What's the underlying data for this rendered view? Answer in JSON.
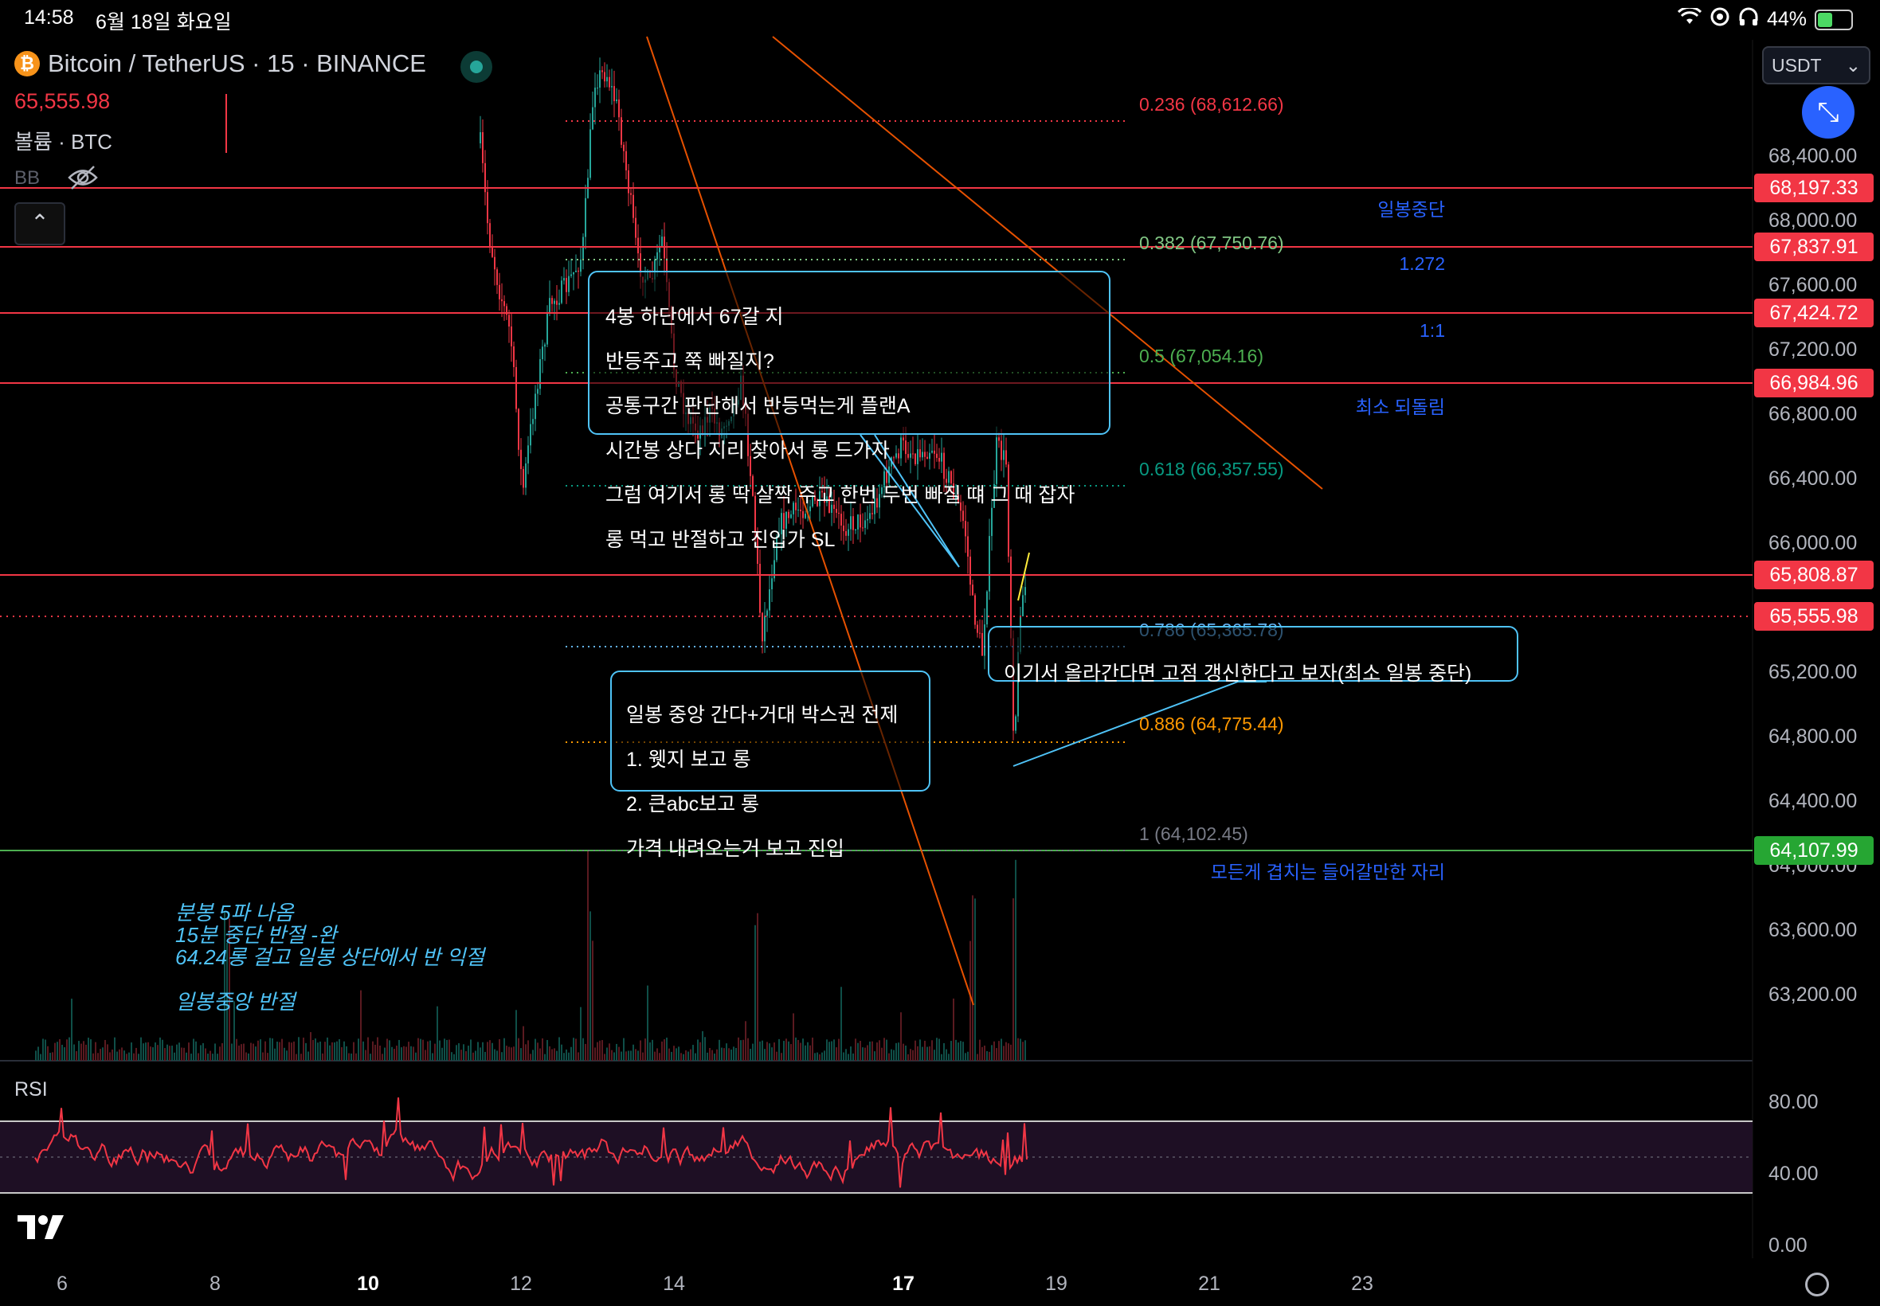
{
  "status_bar": {
    "time": "14:58",
    "date": "6월 18일 화요일",
    "battery": "44%",
    "battery_level": 0.44
  },
  "legend": {
    "symbol_title": "Bitcoin / TetherUS · 15 · BINANCE",
    "last_price": "65,555.98",
    "volume_label": "볼륨 · BTC",
    "bb_label": "BB",
    "collapse_glyph": "⌃"
  },
  "top_right": {
    "currency": "USDT",
    "currency_caret": "⌄",
    "fullscreen_glyph": "⤡"
  },
  "price_axis": {
    "labels": [
      "68,400.00",
      "68,000.00",
      "67,600.00",
      "67,200.00",
      "66,800.00",
      "66,400.00",
      "66,000.00",
      "65,200.00",
      "64,800.00",
      "64,400.00",
      "64,000.00",
      "63,600.00",
      "63,200.00"
    ],
    "tags": [
      {
        "text": "68,197.33",
        "color": "red"
      },
      {
        "text": "67,837.91",
        "color": "red"
      },
      {
        "text": "67,424.72",
        "color": "red"
      },
      {
        "text": "66,984.96",
        "color": "red"
      },
      {
        "text": "65,808.87",
        "color": "red"
      },
      {
        "text": "65,555.98",
        "color": "red"
      },
      {
        "text": "64,107.99",
        "color": "green"
      }
    ]
  },
  "line_labels": {
    "daily_mid": "일봉중단",
    "ext_1272": "1.272",
    "ratio_1_1": "1:1",
    "min_retrace": "최소 되돌림",
    "all_overlap": "모든게 겹치는 들어갈만한 자리"
  },
  "fib_levels": [
    {
      "text": "0.236 (68,612.66)",
      "color": "#f23645"
    },
    {
      "text": "0.382 (67,750.76)",
      "color": "#81c784"
    },
    {
      "text": "0.5 (67,054.16)",
      "color": "#4caf50"
    },
    {
      "text": "0.618 (66,357.55)",
      "color": "#089981"
    },
    {
      "text": "0.786 (65,365.78)",
      "color": "#64b5f6"
    },
    {
      "text": "0.886 (64,775.44)",
      "color": "#ff9800"
    },
    {
      "text": "1 (64,102.45)",
      "color": "#787b86"
    }
  ],
  "notes": {
    "plan_box": [
      "4봉 하단에서 67갈 지",
      "반등주고 쭉 빠질지?",
      "공통구간 판단해서 반등먹는게 플랜A",
      "시간봉 상다 지리 찾아서 롱 드가자",
      "그럼 여기서 롱 딱 살짝 주고 한번 두번 빠질 떄 그 때 잡자",
      "롱 먹고 반절하고 진입가 SL"
    ],
    "high_box": "이기서 올라간다면 고점 갱신한다고 보자(최소 일봉 중단)",
    "daily_box": [
      "일봉 중앙 간다+거대 박스권 전제",
      "1. 웻지 보고 롱",
      "2. 큰abc보고 롱",
      "가격 내려오는거 보고 진입"
    ],
    "italic_lines": [
      "분봉 5파 나옴",
      "15분 중단 반절 -완",
      "64.24롱 걸고 일봉 상단에서 반 익절",
      "일봉중앙 반절"
    ]
  },
  "rsi": {
    "label": "RSI",
    "levels": [
      "80.00",
      "40.00",
      "0.00"
    ]
  },
  "time_axis": [
    {
      "text": "6",
      "bold": false
    },
    {
      "text": "8",
      "bold": false
    },
    {
      "text": "10",
      "bold": true
    },
    {
      "text": "12",
      "bold": false
    },
    {
      "text": "14",
      "bold": false
    },
    {
      "text": "17",
      "bold": true
    },
    {
      "text": "19",
      "bold": false
    },
    {
      "text": "21",
      "bold": false
    },
    {
      "text": "23",
      "bold": false
    }
  ],
  "colors": {
    "up": "#26a69a",
    "down": "#f23645",
    "accent": "#2962ff",
    "note_border": "#4fc3f7",
    "rsi_line": "#f23645",
    "rsi_band": "#1e0f24"
  }
}
